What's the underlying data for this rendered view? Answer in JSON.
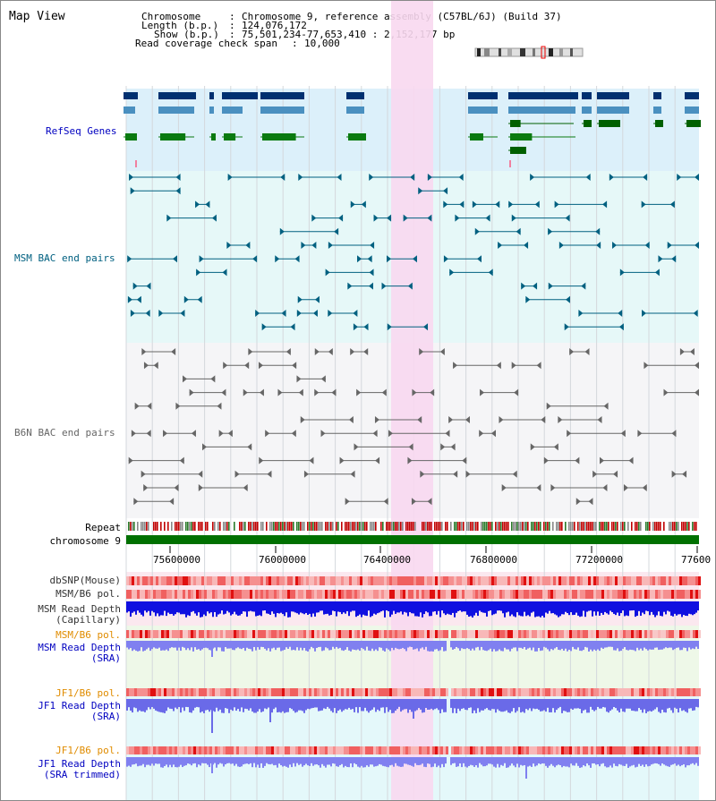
{
  "page_title": "Map View",
  "info": {
    "chromosome_label": "Chromosome",
    "chromosome_value": "Chromosome 9, reference assembly (C57BL/6J) (Build 37)",
    "length_label": "Length (b.p.)",
    "length_value": "124,076,172",
    "show_label": "Show (b.p.)",
    "show_value": "75,501,234-77,653,410 : 2,152,177 bp",
    "coverage_label": "Read coverage check span",
    "coverage_value": "10,000"
  },
  "tracks": {
    "refseq": "RefSeq Genes",
    "msm_bac": "MSM BAC end pairs",
    "b6n_bac": "B6N BAC end pairs",
    "repeat": "Repeat",
    "chromosome": "chromosome 9",
    "dbsnp": "dbSNP(Mouse)",
    "msm_b6_pol_1": "MSM/B6 pol.",
    "msm_depth_cap_1": "MSM Read Depth",
    "msm_depth_cap_2": "(Capillary)",
    "msm_b6_pol_2": "MSM/B6 pol.",
    "msm_depth_sra_1": "MSM Read Depth",
    "msm_depth_sra_2": "(SRA)",
    "jf1_b6_pol_1": "JF1/B6 pol.",
    "jf1_depth_sra_1": "JF1 Read Depth",
    "jf1_depth_sra_2": "(SRA)",
    "jf1_b6_pol_2": "JF1/B6 pol.",
    "jf1_depth_trim_1": "JF1 Read Depth",
    "jf1_depth_trim_2": "(SRA trimmed)"
  },
  "axis": {
    "ticks": [
      "75600000",
      "76000000",
      "76400000",
      "76800000",
      "77200000",
      "77600"
    ]
  },
  "colors": {
    "refseq_label": "#0000c0",
    "msm_bac": "#006080",
    "b6n_bac": "#666666",
    "pol_orange": "#e08c00",
    "depth_blue": "#0000c0",
    "highlight": "#f8d8f0"
  }
}
